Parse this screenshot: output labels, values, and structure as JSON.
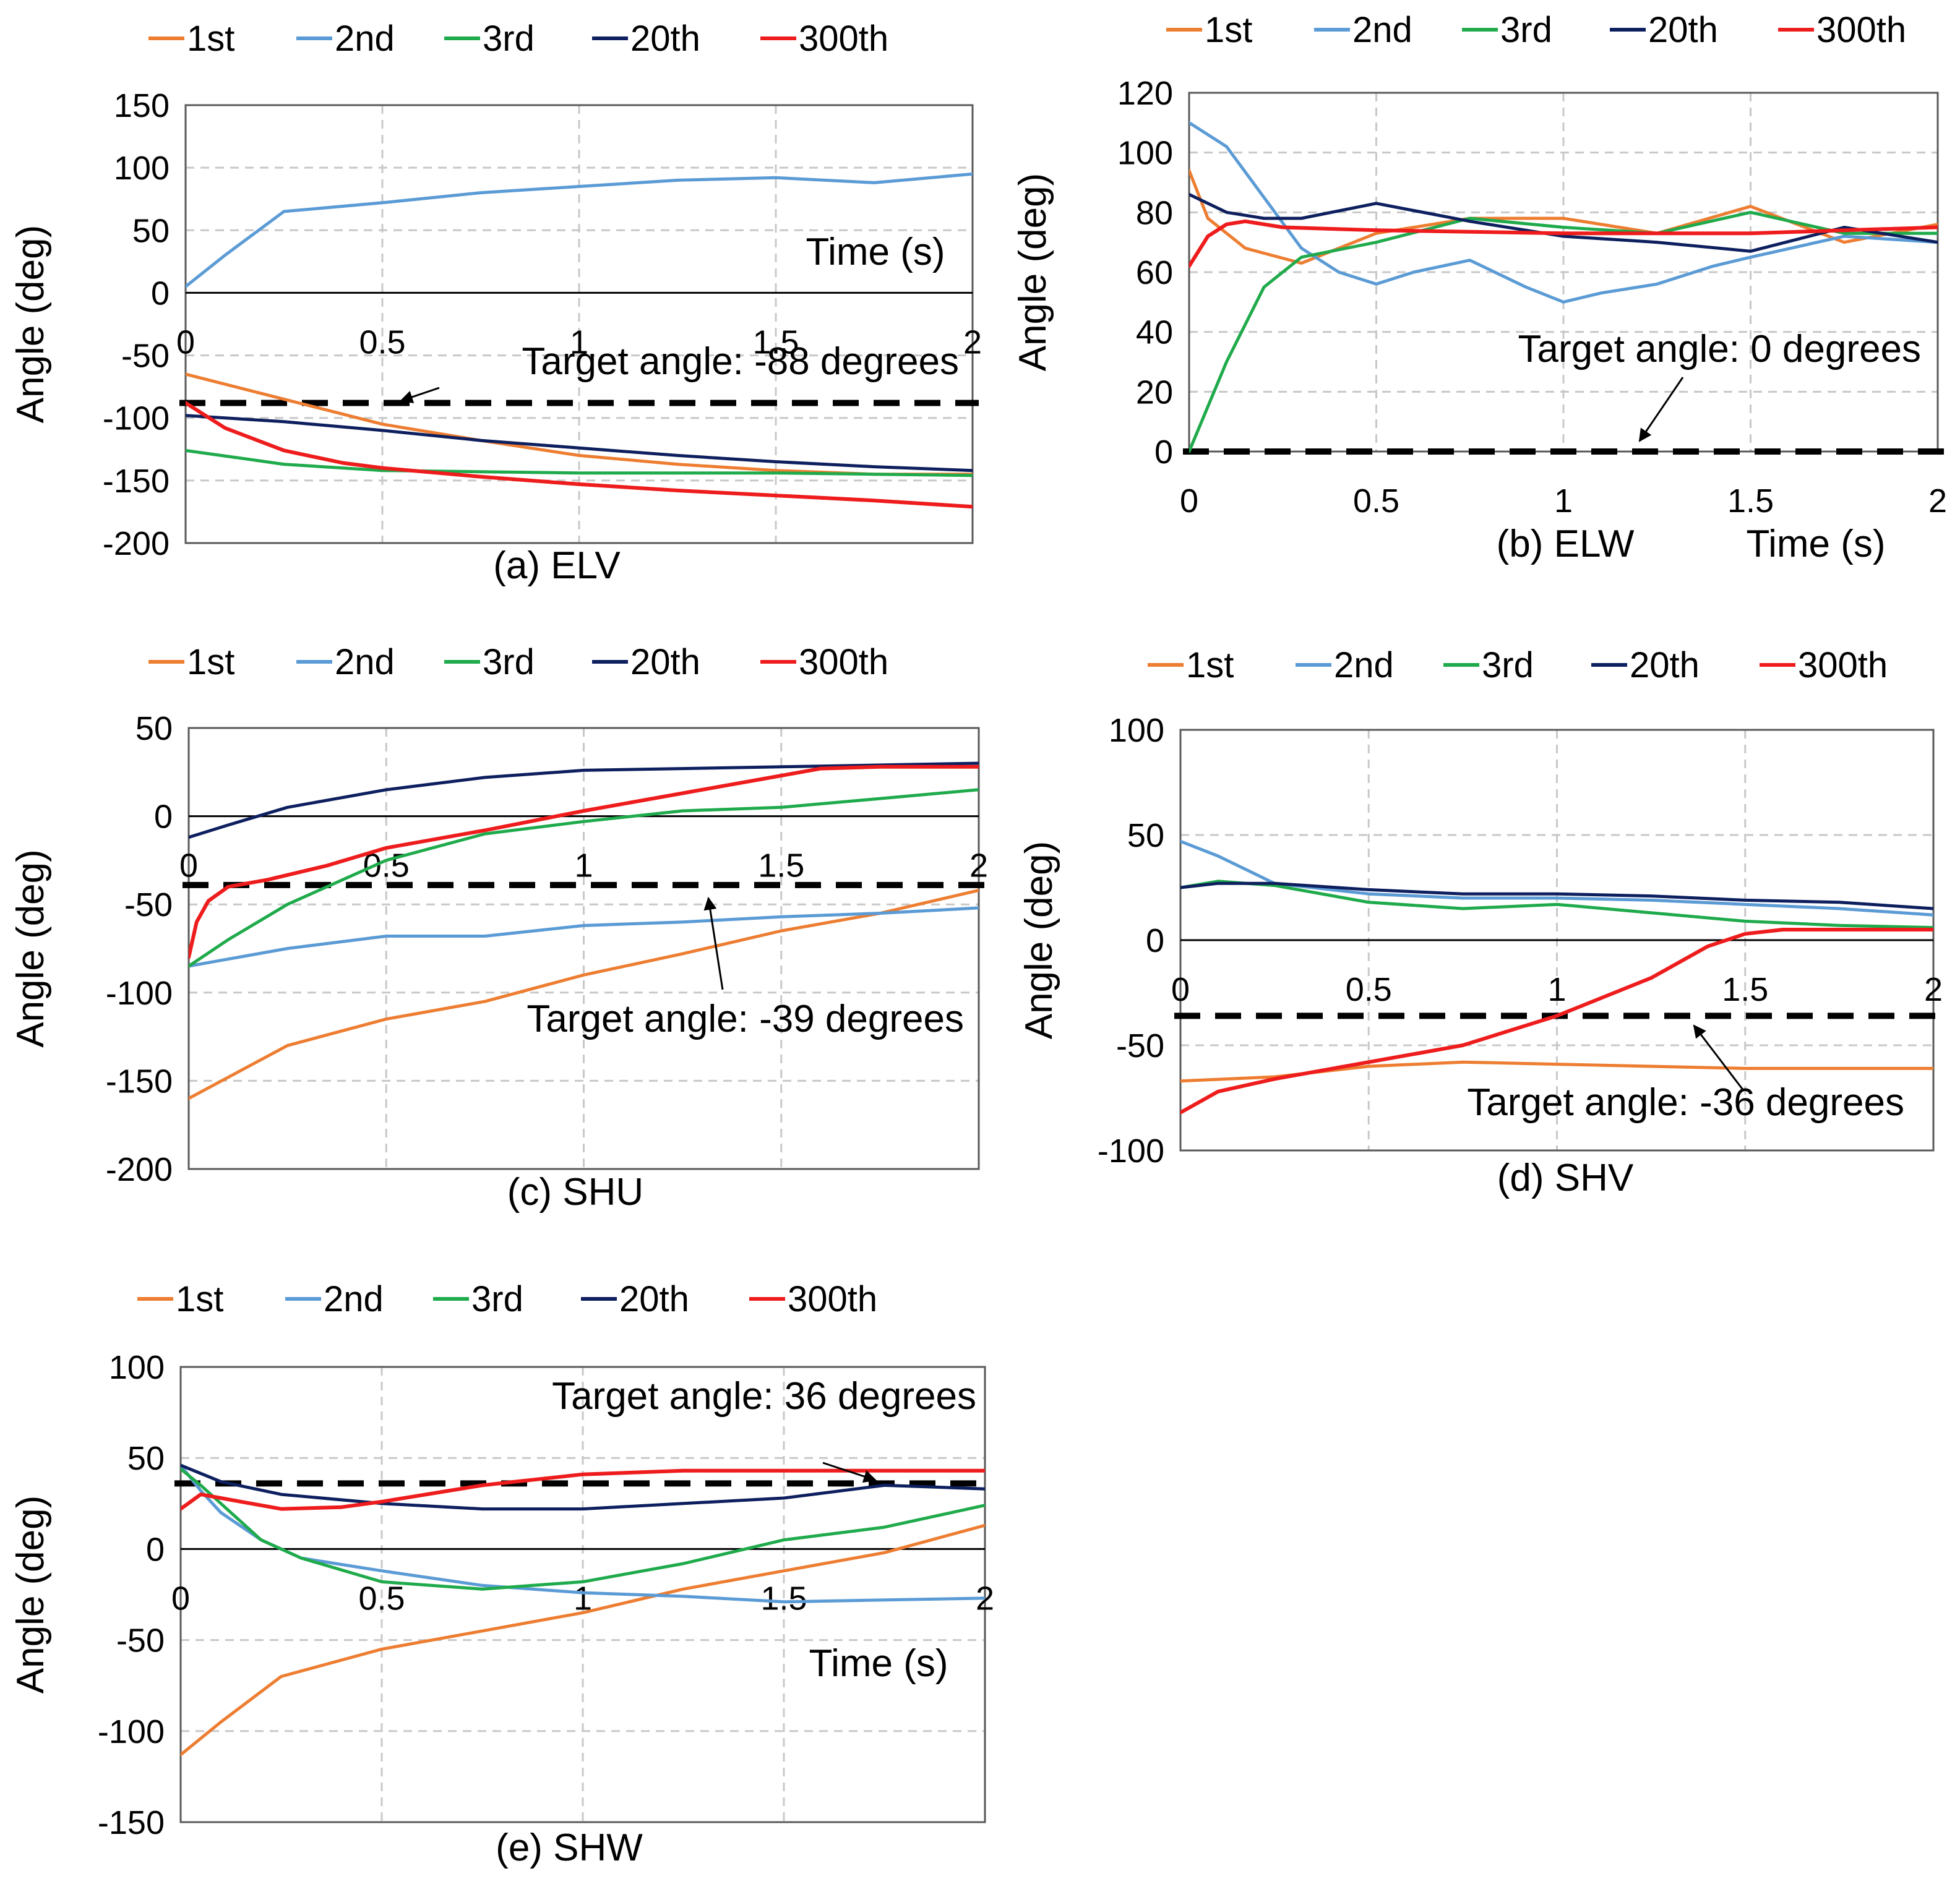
{
  "colors": {
    "1st": "#ED7D31",
    "2nd": "#5B9BD5",
    "3rd": "#1FAA4B",
    "20th": "#0D1F5E",
    "300th": "#EE1C1C",
    "target": "#000000",
    "grid": "#C8C8C8"
  },
  "chart_data": [
    {
      "id": "a",
      "type": "line",
      "caption": "(a) ELV",
      "ylabel": "Angle (deg)",
      "xlabel": "Time (s)",
      "xlim": [
        0,
        2
      ],
      "ylim": [
        -200,
        150
      ],
      "xticks": [
        0,
        0.5,
        1,
        1.5,
        2
      ],
      "xtick_labels": [
        "0",
        "0.5",
        "1",
        "1.5",
        "2"
      ],
      "yticks": [
        150,
        100,
        50,
        0,
        -50,
        -100,
        -150,
        -200
      ],
      "ytick_labels": [
        "150",
        "100",
        "50",
        "0",
        "-50",
        "-100",
        "-150",
        "-200"
      ],
      "legend": [
        "1st",
        "2nd",
        "3rd",
        "20th",
        "300th"
      ],
      "target": {
        "value": -88,
        "label": "Target angle: -88 degrees"
      },
      "series": [
        {
          "name": "1st",
          "x": [
            0,
            0.25,
            0.5,
            0.75,
            1,
            1.25,
            1.5,
            1.75,
            2
          ],
          "y": [
            -65,
            -85,
            -105,
            -118,
            -130,
            -137,
            -142,
            -145,
            -145
          ]
        },
        {
          "name": "2nd",
          "x": [
            0,
            0.1,
            0.25,
            0.5,
            0.75,
            1,
            1.25,
            1.5,
            1.75,
            2
          ],
          "y": [
            5,
            30,
            65,
            72,
            80,
            85,
            90,
            92,
            88,
            95
          ]
        },
        {
          "name": "3rd",
          "x": [
            0,
            0.25,
            0.5,
            0.75,
            1,
            1.25,
            1.5,
            1.75,
            2
          ],
          "y": [
            -126,
            -137,
            -142,
            -143,
            -144,
            -144,
            -144,
            -145,
            -146
          ]
        },
        {
          "name": "20th",
          "x": [
            0,
            0.25,
            0.5,
            0.75,
            1,
            1.25,
            1.5,
            1.75,
            2
          ],
          "y": [
            -98,
            -103,
            -110,
            -118,
            -124,
            -130,
            -135,
            -139,
            -142
          ]
        },
        {
          "name": "300th",
          "x": [
            0,
            0.1,
            0.25,
            0.4,
            0.5,
            0.75,
            1,
            1.25,
            1.5,
            1.75,
            2
          ],
          "y": [
            -88,
            -108,
            -126,
            -136,
            -140,
            -147,
            -153,
            -158,
            -162,
            -166,
            -171
          ]
        }
      ]
    },
    {
      "id": "b",
      "type": "line",
      "caption": "(b) ELW",
      "ylabel": "Angle (deg)",
      "xlabel": "Time (s)",
      "xlim": [
        0,
        2
      ],
      "ylim": [
        0,
        120
      ],
      "xticks": [
        0,
        0.5,
        1,
        1.5,
        2
      ],
      "xtick_labels": [
        "0",
        "0.5",
        "1",
        "1.5",
        "2"
      ],
      "yticks": [
        120,
        100,
        80,
        60,
        40,
        20,
        0
      ],
      "ytick_labels": [
        "120",
        "100",
        "80",
        "60",
        "40",
        "20",
        "0"
      ],
      "legend": [
        "1st",
        "2nd",
        "3rd",
        "20th",
        "300th"
      ],
      "target": {
        "value": 0,
        "label": "Target angle: 0 degrees"
      },
      "series": [
        {
          "name": "1st",
          "x": [
            0,
            0.05,
            0.15,
            0.3,
            0.5,
            0.75,
            1,
            1.25,
            1.5,
            1.75,
            2
          ],
          "y": [
            94,
            78,
            68,
            63,
            73,
            78,
            78,
            73,
            82,
            70,
            76
          ]
        },
        {
          "name": "2nd",
          "x": [
            0,
            0.1,
            0.2,
            0.3,
            0.4,
            0.5,
            0.6,
            0.75,
            0.9,
            1,
            1.1,
            1.25,
            1.4,
            1.5,
            1.75,
            2
          ],
          "y": [
            110,
            102,
            85,
            68,
            60,
            56,
            60,
            64,
            55,
            50,
            53,
            56,
            62,
            65,
            72,
            70
          ]
        },
        {
          "name": "3rd",
          "x": [
            0,
            0.1,
            0.2,
            0.3,
            0.5,
            0.75,
            1,
            1.25,
            1.5,
            1.75,
            2
          ],
          "y": [
            0,
            30,
            55,
            65,
            70,
            78,
            75,
            73,
            80,
            73,
            73
          ]
        },
        {
          "name": "20th",
          "x": [
            0,
            0.1,
            0.2,
            0.3,
            0.5,
            0.75,
            1,
            1.25,
            1.5,
            1.75,
            2
          ],
          "y": [
            86,
            80,
            78,
            78,
            83,
            77,
            72,
            70,
            67,
            75,
            70
          ]
        },
        {
          "name": "300th",
          "x": [
            0,
            0.05,
            0.1,
            0.15,
            0.25,
            0.5,
            1,
            1.5,
            2
          ],
          "y": [
            62,
            72,
            76,
            77,
            75,
            74,
            73,
            73,
            75
          ]
        }
      ]
    },
    {
      "id": "c",
      "type": "line",
      "caption": "(c) SHU",
      "ylabel": "Angle (deg)",
      "xlabel": "",
      "xlim": [
        0,
        2
      ],
      "ylim": [
        -200,
        50
      ],
      "xticks": [
        0,
        0.5,
        1,
        1.5,
        2
      ],
      "xtick_labels": [
        "0",
        "0.5",
        "1",
        "1.5",
        "2"
      ],
      "yticks": [
        50,
        0,
        -50,
        -100,
        -150,
        -200
      ],
      "ytick_labels": [
        "50",
        "0",
        "-50",
        "-100",
        "-150",
        "-200"
      ],
      "legend": [
        "1st",
        "2nd",
        "3rd",
        "20th",
        "300th"
      ],
      "target": {
        "value": -39,
        "label": "Target angle: -39 degrees"
      },
      "series": [
        {
          "name": "1st",
          "x": [
            0,
            0.25,
            0.5,
            0.75,
            1,
            1.25,
            1.5,
            1.75,
            2
          ],
          "y": [
            -160,
            -130,
            -115,
            -105,
            -90,
            -78,
            -65,
            -55,
            -42
          ]
        },
        {
          "name": "2nd",
          "x": [
            0,
            0.25,
            0.5,
            0.75,
            1,
            1.25,
            1.5,
            1.75,
            2
          ],
          "y": [
            -85,
            -75,
            -68,
            -68,
            -62,
            -60,
            -57,
            -55,
            -52
          ]
        },
        {
          "name": "3rd",
          "x": [
            0,
            0.1,
            0.25,
            0.5,
            0.75,
            1,
            1.25,
            1.5,
            1.75,
            2
          ],
          "y": [
            -85,
            -70,
            -50,
            -25,
            -10,
            -3,
            3,
            5,
            10,
            15
          ]
        },
        {
          "name": "20th",
          "x": [
            0,
            0.1,
            0.25,
            0.5,
            0.75,
            1,
            1.25,
            1.5,
            1.75,
            2
          ],
          "y": [
            -12,
            -5,
            5,
            15,
            22,
            26,
            27,
            28,
            29,
            30
          ]
        },
        {
          "name": "300th",
          "x": [
            0,
            0.02,
            0.05,
            0.1,
            0.2,
            0.35,
            0.5,
            0.75,
            1,
            1.25,
            1.5,
            1.6,
            1.75,
            2
          ],
          "y": [
            -80,
            -60,
            -48,
            -40,
            -36,
            -28,
            -18,
            -8,
            3,
            13,
            23,
            27,
            28,
            28
          ]
        }
      ]
    },
    {
      "id": "d",
      "type": "line",
      "caption": "(d) SHV",
      "ylabel": "Angle (deg)",
      "xlabel": "",
      "xlim": [
        0,
        2
      ],
      "ylim": [
        -100,
        100
      ],
      "xticks": [
        0,
        0.5,
        1,
        1.5,
        2
      ],
      "xtick_labels": [
        "0",
        "0.5",
        "1",
        "1.5",
        "2"
      ],
      "yticks": [
        100,
        50,
        0,
        -50,
        -100
      ],
      "ytick_labels": [
        "100",
        "50",
        "0",
        "-50",
        "-100"
      ],
      "legend": [
        "1st",
        "2nd",
        "3rd",
        "20th",
        "300th"
      ],
      "target": {
        "value": -36,
        "label": "Target angle: -36 degrees"
      },
      "series": [
        {
          "name": "1st",
          "x": [
            0,
            0.25,
            0.5,
            0.75,
            1,
            1.25,
            1.5,
            1.75,
            2
          ],
          "y": [
            -67,
            -65,
            -60,
            -58,
            -59,
            -60,
            -61,
            -61,
            -61
          ]
        },
        {
          "name": "2nd",
          "x": [
            0,
            0.1,
            0.25,
            0.5,
            0.75,
            1,
            1.25,
            1.5,
            1.75,
            2
          ],
          "y": [
            47,
            40,
            27,
            22,
            20,
            20,
            19,
            17,
            15,
            12
          ]
        },
        {
          "name": "3rd",
          "x": [
            0,
            0.1,
            0.25,
            0.5,
            0.75,
            1,
            1.25,
            1.5,
            1.75,
            2
          ],
          "y": [
            25,
            28,
            26,
            18,
            15,
            17,
            13,
            9,
            7,
            6
          ]
        },
        {
          "name": "20th",
          "x": [
            0,
            0.1,
            0.25,
            0.5,
            0.75,
            1,
            1.25,
            1.5,
            1.75,
            2
          ],
          "y": [
            25,
            27,
            27,
            24,
            22,
            22,
            21,
            19,
            18,
            15
          ]
        },
        {
          "name": "300th",
          "x": [
            0,
            0.1,
            0.25,
            0.5,
            0.75,
            1,
            1.25,
            1.4,
            1.5,
            1.6,
            1.75,
            2
          ],
          "y": [
            -82,
            -72,
            -66,
            -58,
            -50,
            -36,
            -18,
            -3,
            3,
            5,
            5,
            5
          ]
        }
      ]
    },
    {
      "id": "e",
      "type": "line",
      "caption": "(e) SHW",
      "ylabel": "Angle (deg)",
      "xlabel": "Time (s)",
      "xlim": [
        0,
        2
      ],
      "ylim": [
        -150,
        100
      ],
      "xticks": [
        0,
        0.5,
        1,
        1.5,
        2
      ],
      "xtick_labels": [
        "0",
        "0.5",
        "1",
        "1.5",
        "2"
      ],
      "yticks": [
        100,
        50,
        0,
        -50,
        -100,
        -150
      ],
      "ytick_labels": [
        "100",
        "50",
        "0",
        "-50",
        "-100",
        "-150"
      ],
      "legend": [
        "1st",
        "2nd",
        "3rd",
        "20th",
        "300th"
      ],
      "target": {
        "value": 36,
        "label": "Target angle: 36 degrees"
      },
      "series": [
        {
          "name": "1st",
          "x": [
            0,
            0.1,
            0.25,
            0.5,
            0.75,
            1,
            1.25,
            1.5,
            1.75,
            2
          ],
          "y": [
            -113,
            -95,
            -70,
            -55,
            -45,
            -35,
            -22,
            -12,
            -2,
            13
          ]
        },
        {
          "name": "2nd",
          "x": [
            0,
            0.05,
            0.1,
            0.2,
            0.3,
            0.5,
            0.75,
            1,
            1.25,
            1.5,
            1.75,
            2
          ],
          "y": [
            46,
            32,
            20,
            5,
            -5,
            -12,
            -20,
            -24,
            -26,
            -29,
            -28,
            -27
          ]
        },
        {
          "name": "3rd",
          "x": [
            0,
            0.05,
            0.1,
            0.2,
            0.3,
            0.5,
            0.75,
            1,
            1.25,
            1.5,
            1.75,
            2
          ],
          "y": [
            44,
            35,
            25,
            5,
            -5,
            -18,
            -22,
            -18,
            -8,
            5,
            12,
            24
          ]
        },
        {
          "name": "20th",
          "x": [
            0,
            0.1,
            0.25,
            0.5,
            0.75,
            1,
            1.25,
            1.5,
            1.75,
            2
          ],
          "y": [
            46,
            37,
            30,
            25,
            22,
            22,
            25,
            28,
            35,
            33
          ]
        },
        {
          "name": "300th",
          "x": [
            0,
            0.05,
            0.15,
            0.25,
            0.4,
            0.5,
            0.75,
            1,
            1.25,
            1.5,
            1.75,
            2
          ],
          "y": [
            22,
            30,
            26,
            22,
            23,
            26,
            35,
            41,
            43,
            43,
            43,
            43
          ]
        }
      ]
    }
  ]
}
